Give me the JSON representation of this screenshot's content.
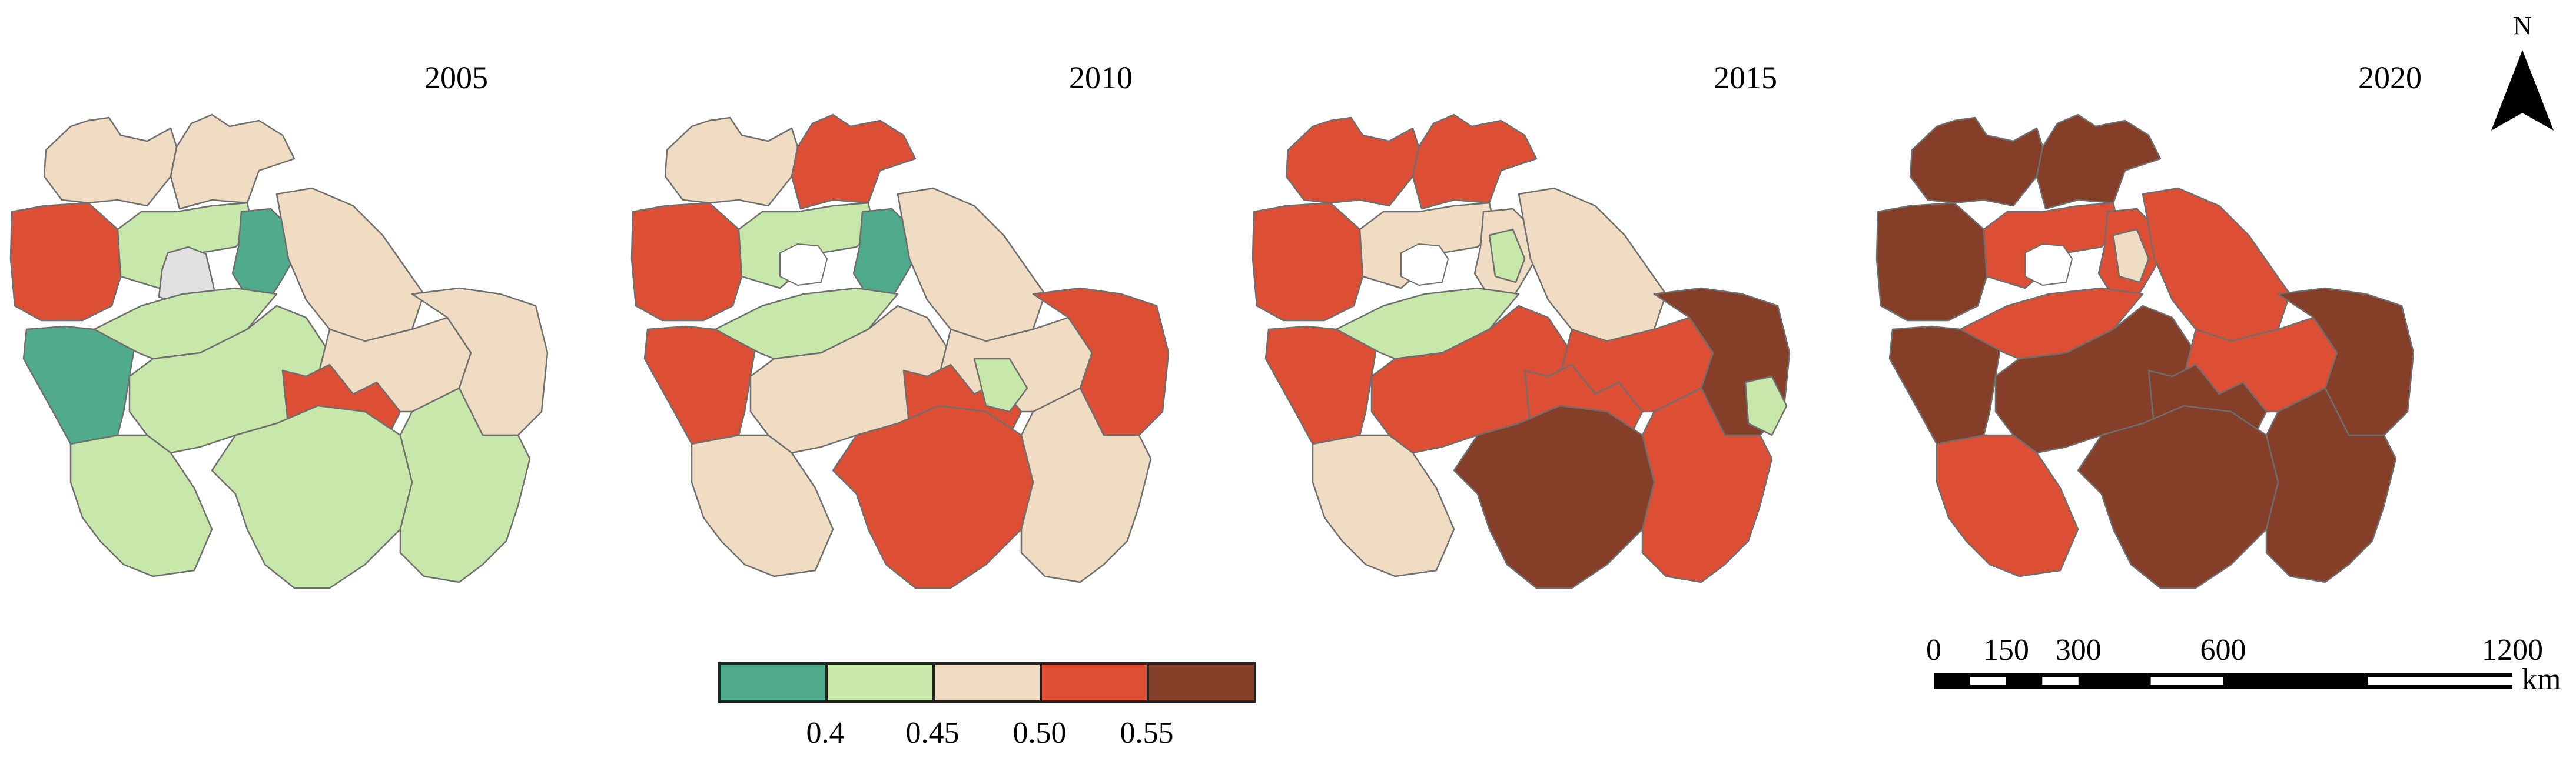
{
  "panels": [
    {
      "year": "2005",
      "regions": [
        {
          "id": "n1",
          "cls": "c3"
        },
        {
          "id": "n2",
          "cls": "c3"
        },
        {
          "id": "w1",
          "cls": "c4"
        },
        {
          "id": "c1",
          "cls": "c2"
        },
        {
          "id": "c2",
          "cls": "nodata"
        },
        {
          "id": "c3",
          "cls": "c1"
        },
        {
          "id": "e1",
          "cls": "c3"
        },
        {
          "id": "w2",
          "cls": "c1"
        },
        {
          "id": "m1",
          "cls": "c2"
        },
        {
          "id": "m2",
          "cls": "c2"
        },
        {
          "id": "m3",
          "cls": "c3"
        },
        {
          "id": "m4",
          "cls": "c4"
        },
        {
          "id": "e2",
          "cls": "c3"
        },
        {
          "id": "s1",
          "cls": "c2"
        },
        {
          "id": "s2",
          "cls": "c2"
        },
        {
          "id": "s3",
          "cls": "c2"
        }
      ]
    },
    {
      "year": "2010",
      "regions": [
        {
          "id": "n1",
          "cls": "c3"
        },
        {
          "id": "n2",
          "cls": "c4"
        },
        {
          "id": "w1",
          "cls": "c4"
        },
        {
          "id": "c1",
          "cls": "c2"
        },
        {
          "id": "c3",
          "cls": "c1"
        },
        {
          "id": "e1",
          "cls": "c3"
        },
        {
          "id": "w2",
          "cls": "c4"
        },
        {
          "id": "m1",
          "cls": "c2"
        },
        {
          "id": "m2",
          "cls": "c3"
        },
        {
          "id": "m3",
          "cls": "c3"
        },
        {
          "id": "m4",
          "cls": "c4"
        },
        {
          "id": "m5",
          "cls": "c2"
        },
        {
          "id": "e2",
          "cls": "c4"
        },
        {
          "id": "s1",
          "cls": "c3"
        },
        {
          "id": "s2",
          "cls": "c4"
        },
        {
          "id": "s3",
          "cls": "c3"
        }
      ]
    },
    {
      "year": "2015",
      "regions": [
        {
          "id": "n1",
          "cls": "c4"
        },
        {
          "id": "n2",
          "cls": "c4"
        },
        {
          "id": "w1",
          "cls": "c4"
        },
        {
          "id": "c1",
          "cls": "c3"
        },
        {
          "id": "c3",
          "cls": "c3"
        },
        {
          "id": "c4",
          "cls": "c2"
        },
        {
          "id": "e1",
          "cls": "c3"
        },
        {
          "id": "w2",
          "cls": "c4"
        },
        {
          "id": "m1",
          "cls": "c2"
        },
        {
          "id": "m2",
          "cls": "c4"
        },
        {
          "id": "m3",
          "cls": "c4"
        },
        {
          "id": "m4",
          "cls": "c4"
        },
        {
          "id": "e2",
          "cls": "c5"
        },
        {
          "id": "e3",
          "cls": "c2"
        },
        {
          "id": "s1",
          "cls": "c3"
        },
        {
          "id": "s2",
          "cls": "c5"
        },
        {
          "id": "s3",
          "cls": "c4"
        }
      ]
    },
    {
      "year": "2020",
      "regions": [
        {
          "id": "n1",
          "cls": "c5"
        },
        {
          "id": "n2",
          "cls": "c5"
        },
        {
          "id": "w1",
          "cls": "c5"
        },
        {
          "id": "c1",
          "cls": "c4"
        },
        {
          "id": "c3",
          "cls": "c4"
        },
        {
          "id": "c4",
          "cls": "c3"
        },
        {
          "id": "e1",
          "cls": "c4"
        },
        {
          "id": "w2",
          "cls": "c5"
        },
        {
          "id": "m1",
          "cls": "c4"
        },
        {
          "id": "m2",
          "cls": "c5"
        },
        {
          "id": "m3",
          "cls": "c4"
        },
        {
          "id": "m4",
          "cls": "c5"
        },
        {
          "id": "e2",
          "cls": "c5"
        },
        {
          "id": "s1",
          "cls": "c4"
        },
        {
          "id": "s2",
          "cls": "c5"
        },
        {
          "id": "s3",
          "cls": "c5"
        }
      ]
    }
  ],
  "legend": {
    "colors": [
      "#4fab8c",
      "#c8e8ab",
      "#efdcc2",
      "#dc4f34",
      "#853e27"
    ],
    "break_labels": [
      "0.4",
      "0.45",
      "0.50",
      "0.55"
    ]
  },
  "class_colors": {
    "c1": "#4fab8c",
    "c2": "#c8e8ab",
    "c3": "#efdcc2",
    "c4": "#dc4f34",
    "c5": "#853e27",
    "nodata": "#e1e1e1"
  },
  "north_arrow": {
    "label": "N",
    "icon": "north-arrow-icon"
  },
  "scale_bar": {
    "tick_labels": [
      "0",
      "150",
      "300",
      "600",
      "1200"
    ],
    "tick_values": [
      0,
      150,
      300,
      600,
      1200
    ],
    "unit": "km"
  }
}
